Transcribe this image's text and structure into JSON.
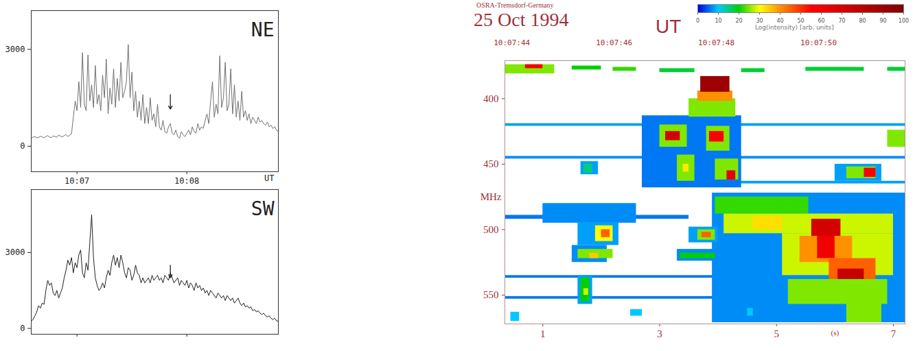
{
  "chart_data": [
    {
      "type": "line",
      "title": "NE",
      "x_label": "UT",
      "xlim": [
        -25,
        110
      ],
      "xticks": [
        {
          "value": 0,
          "label": "10:07"
        },
        {
          "value": 60,
          "label": "10:08"
        }
      ],
      "ylim": [
        -790,
        4200
      ],
      "yticks": [
        0,
        3000
      ],
      "x": [
        -25,
        -24,
        -23,
        -22,
        -21,
        -20,
        -19,
        -18,
        -17,
        -16,
        -15,
        -14,
        -13,
        -12,
        -11,
        -10,
        -9,
        -8,
        -7,
        -6,
        -5,
        -4,
        -3,
        -2,
        -1,
        0,
        1,
        2,
        3,
        4,
        5,
        6,
        7,
        8,
        9,
        10,
        11,
        12,
        13,
        14,
        15,
        16,
        17,
        18,
        19,
        20,
        21,
        22,
        23,
        24,
        25,
        26,
        27,
        28,
        29,
        30,
        31,
        32,
        33,
        34,
        35,
        36,
        37,
        38,
        39,
        40,
        41,
        42,
        43,
        44,
        45,
        46,
        47,
        48,
        49,
        50,
        51,
        52,
        53,
        54,
        55,
        56,
        57,
        58,
        59,
        60,
        61,
        62,
        63,
        64,
        65,
        66,
        67,
        68,
        69,
        70,
        71,
        72,
        73,
        74,
        75,
        76,
        77,
        78,
        79,
        80,
        81,
        82,
        83,
        84,
        85,
        86,
        87,
        88,
        89,
        90,
        91,
        92,
        93,
        94,
        95,
        96,
        97,
        98,
        99,
        100,
        101,
        102,
        103,
        104,
        105,
        106,
        107,
        108,
        109,
        110
      ],
      "values": [
        250,
        280,
        300,
        260,
        270,
        310,
        290,
        260,
        300,
        330,
        280,
        270,
        320,
        300,
        280,
        350,
        310,
        290,
        330,
        360,
        300,
        340,
        380,
        900,
        1400,
        1100,
        2000,
        1200,
        2900,
        1300,
        1100,
        2830,
        1400,
        1900,
        1200,
        2500,
        1300,
        1600,
        1100,
        2200,
        1500,
        2700,
        1000,
        1800,
        1300,
        2400,
        1200,
        2100,
        1400,
        2600,
        1500,
        1700,
        2000,
        3150,
        1500,
        2300,
        1100,
        1700,
        900,
        1400,
        800,
        1600,
        700,
        1200,
        700,
        1500,
        800,
        1000,
        600,
        1300,
        600,
        500,
        800,
        450,
        400,
        600,
        700,
        400,
        350,
        500,
        300,
        250,
        450,
        350,
        300,
        400,
        500,
        350,
        600,
        450,
        400,
        700,
        500,
        600,
        550,
        800,
        1000,
        700,
        1400,
        2000,
        900,
        1300,
        1000,
        2800,
        1200,
        1500,
        2600,
        1100,
        1300,
        2400,
        1000,
        1900,
        900,
        1400,
        800,
        1700,
        900,
        1100,
        800,
        1000,
        700,
        900,
        800,
        700,
        900,
        750,
        800,
        700,
        650,
        750,
        600,
        650,
        550,
        600,
        500,
        450
      ],
      "color": "#707070",
      "arrow": {
        "x": 51,
        "y1": 1600,
        "y2": 1150
      }
    },
    {
      "type": "line",
      "title": "SW",
      "tick_labels": "y",
      "xlim": [
        -25,
        110
      ],
      "xticks": [
        0,
        60
      ],
      "ylim": [
        -230,
        5490
      ],
      "yticks": [
        0,
        3000
      ],
      "x": [
        -25,
        -24,
        -23,
        -22,
        -21,
        -20,
        -19,
        -18,
        -17,
        -16,
        -15,
        -14,
        -13,
        -12,
        -11,
        -10,
        -9,
        -8,
        -7,
        -6,
        -5,
        -4,
        -3,
        -2,
        -1,
        0,
        1,
        2,
        3,
        4,
        5,
        6,
        7,
        8,
        9,
        10,
        11,
        12,
        13,
        14,
        15,
        16,
        17,
        18,
        19,
        20,
        21,
        22,
        23,
        24,
        25,
        26,
        27,
        28,
        29,
        30,
        31,
        32,
        33,
        34,
        35,
        36,
        37,
        38,
        39,
        40,
        41,
        42,
        43,
        44,
        45,
        46,
        47,
        48,
        49,
        50,
        51,
        52,
        53,
        54,
        55,
        56,
        57,
        58,
        59,
        60,
        61,
        62,
        63,
        64,
        65,
        66,
        67,
        68,
        69,
        70,
        71,
        72,
        73,
        74,
        75,
        76,
        77,
        78,
        79,
        80,
        81,
        82,
        83,
        84,
        85,
        86,
        87,
        88,
        89,
        90,
        91,
        92,
        93,
        94,
        95,
        96,
        97,
        98,
        99,
        100,
        101,
        102,
        103,
        104,
        105,
        106,
        107,
        108,
        109,
        110
      ],
      "values": [
        300,
        350,
        500,
        650,
        900,
        800,
        1000,
        950,
        1500,
        1900,
        1700,
        1800,
        1400,
        1300,
        1500,
        1200,
        1400,
        1600,
        2000,
        2300,
        2700,
        2500,
        2800,
        2200,
        2600,
        2400,
        2900,
        3100,
        2200,
        2000,
        2600,
        2300,
        3400,
        4500,
        2800,
        2000,
        1700,
        1500,
        1600,
        1800,
        1600,
        2000,
        2300,
        2100,
        2600,
        2900,
        2500,
        2800,
        2400,
        2900,
        2600,
        2200,
        2000,
        2400,
        2300,
        1900,
        2100,
        2500,
        2200,
        2100,
        1800,
        2000,
        1800,
        1900,
        2000,
        1800,
        2100,
        1900,
        2000,
        2100,
        1900,
        2000,
        1800,
        2100,
        2000,
        1900,
        2200,
        2000,
        1800,
        1900,
        2000,
        1700,
        1900,
        1800,
        1700,
        1900,
        1600,
        1800,
        1700,
        1500,
        1800,
        1600,
        1700,
        1500,
        1600,
        1400,
        1500,
        1300,
        1500,
        1400,
        1300,
        1200,
        1400,
        1300,
        1200,
        1300,
        1100,
        1300,
        1200,
        1100,
        1200,
        1000,
        1100,
        1200,
        1000,
        900,
        1000,
        850,
        900,
        800,
        850,
        700,
        750,
        650,
        700,
        600,
        550,
        600,
        500,
        450,
        500,
        400,
        350,
        400,
        300,
        280
      ],
      "color": "#202020",
      "arrow": {
        "x": 51,
        "y1": 2500,
        "y2": 2000
      }
    },
    {
      "type": "heatmap",
      "title": "25 Oct 1994",
      "subtitle": "OSRA-Tremsdorf-Germany",
      "annotations": [
        "UT"
      ],
      "x_label": "(s)",
      "y_label": "MHz",
      "xlim": [
        0.35,
        7.2
      ],
      "xticks": [
        1,
        3,
        5,
        7
      ],
      "x2ticks": [
        {
          "value": 0.47,
          "label": "10:07:44"
        },
        {
          "value": 2.22,
          "label": "10:07:46"
        },
        {
          "value": 3.97,
          "label": "10:07:48"
        },
        {
          "value": 5.72,
          "label": "10:07:50"
        }
      ],
      "ylim": [
        371,
        572
      ],
      "yticks": [
        400,
        450,
        500,
        550
      ],
      "cells": [
        {
          "t1": 0.35,
          "t2": 7.2,
          "f1": 419,
          "f2": 421,
          "value": 8
        },
        {
          "t1": 0.35,
          "t2": 7.2,
          "f1": 444,
          "f2": 446,
          "value": 7
        },
        {
          "t1": 4.0,
          "t2": 7.2,
          "f1": 463,
          "f2": 465,
          "value": 8
        },
        {
          "t1": 0.35,
          "t2": 4.0,
          "f1": 535,
          "f2": 537,
          "value": 6
        },
        {
          "t1": 0.35,
          "t2": 7.2,
          "f1": 551,
          "f2": 553,
          "value": 6
        },
        {
          "t1": 0.35,
          "t2": 3.5,
          "f1": 489,
          "f2": 492,
          "value": 6
        },
        {
          "t1": 2.7,
          "t2": 4.4,
          "f1": 413,
          "f2": 468,
          "value": 6
        },
        {
          "t1": 3.9,
          "t2": 7.2,
          "f1": 472,
          "f2": 571,
          "value": 7
        },
        {
          "t1": 6.0,
          "t2": 6.8,
          "f1": 450,
          "f2": 463,
          "value": 8
        },
        {
          "t1": 1.0,
          "t2": 2.6,
          "f1": 480,
          "f2": 495,
          "value": 7
        },
        {
          "t1": 1.6,
          "t2": 2.3,
          "f1": 495,
          "f2": 512,
          "value": 8
        },
        {
          "t1": 1.5,
          "t2": 2.1,
          "f1": 512,
          "f2": 525,
          "value": 7
        },
        {
          "t1": 1.6,
          "t2": 1.85,
          "f1": 535,
          "f2": 557,
          "value": 8
        },
        {
          "t1": 1.65,
          "t2": 1.95,
          "f1": 448,
          "f2": 458,
          "value": 8
        },
        {
          "t1": 3.5,
          "t2": 4.0,
          "f1": 498,
          "f2": 510,
          "value": 8
        },
        {
          "t1": 3.3,
          "t2": 4.0,
          "f1": 515,
          "f2": 524,
          "value": 7
        },
        {
          "t1": 2.5,
          "t2": 2.7,
          "f1": 561,
          "f2": 566,
          "value": 10
        },
        {
          "t1": 4.5,
          "t2": 4.6,
          "f1": 560,
          "f2": 566,
          "value": 10
        },
        {
          "t1": 0.45,
          "t2": 0.6,
          "f1": 563,
          "f2": 570,
          "value": 10
        },
        {
          "t1": 0.35,
          "t2": 1.2,
          "f1": 374,
          "f2": 381,
          "value": 25
        },
        {
          "t1": 0.7,
          "t2": 1.0,
          "f1": 374,
          "f2": 377,
          "value": 60
        },
        {
          "t1": 1.5,
          "t2": 2.0,
          "f1": 375,
          "f2": 378,
          "value": 20
        },
        {
          "t1": 2.2,
          "t2": 2.6,
          "f1": 376,
          "f2": 379,
          "value": 22
        },
        {
          "t1": 3.0,
          "t2": 3.6,
          "f1": 377,
          "f2": 380,
          "value": 18
        },
        {
          "t1": 4.4,
          "t2": 4.8,
          "f1": 377,
          "f2": 380,
          "value": 18
        },
        {
          "t1": 5.5,
          "t2": 6.5,
          "f1": 376,
          "f2": 379,
          "value": 18
        },
        {
          "t1": 6.9,
          "t2": 7.2,
          "f1": 376,
          "f2": 379,
          "value": 18
        },
        {
          "t1": 3.5,
          "t2": 4.3,
          "f1": 400,
          "f2": 414,
          "value": 25
        },
        {
          "t1": 3.65,
          "t2": 4.25,
          "f1": 394,
          "f2": 402,
          "value": 40
        },
        {
          "t1": 3.7,
          "t2": 4.2,
          "f1": 383,
          "f2": 395,
          "value": 90
        },
        {
          "t1": 3.0,
          "t2": 3.47,
          "f1": 420,
          "f2": 437,
          "value": 25
        },
        {
          "t1": 3.1,
          "t2": 3.35,
          "f1": 425,
          "f2": 432,
          "value": 70
        },
        {
          "t1": 3.8,
          "t2": 4.2,
          "f1": 421,
          "f2": 440,
          "value": 25
        },
        {
          "t1": 3.85,
          "t2": 4.1,
          "f1": 425,
          "f2": 433,
          "value": 55
        },
        {
          "t1": 3.3,
          "t2": 3.6,
          "f1": 443,
          "f2": 463,
          "value": 25
        },
        {
          "t1": 3.4,
          "t2": 3.5,
          "f1": 450,
          "f2": 456,
          "value": 32
        },
        {
          "t1": 3.95,
          "t2": 4.35,
          "f1": 446,
          "f2": 462,
          "value": 25
        },
        {
          "t1": 4.15,
          "t2": 4.3,
          "f1": 455,
          "f2": 462,
          "value": 65
        },
        {
          "t1": 6.2,
          "t2": 6.7,
          "f1": 452,
          "f2": 461,
          "value": 25
        },
        {
          "t1": 6.5,
          "t2": 6.7,
          "f1": 453,
          "f2": 460,
          "value": 55
        },
        {
          "t1": 6.9,
          "t2": 7.2,
          "f1": 424,
          "f2": 437,
          "value": 25
        },
        {
          "t1": 1.7,
          "t2": 1.85,
          "f1": 450,
          "f2": 457,
          "value": 15
        },
        {
          "t1": 3.95,
          "t2": 5.55,
          "f1": 475,
          "f2": 488,
          "value": 22
        },
        {
          "t1": 4.1,
          "t2": 7.0,
          "f1": 488,
          "f2": 503,
          "value": 28
        },
        {
          "t1": 5.1,
          "t2": 7.0,
          "f1": 503,
          "f2": 535,
          "value": 28
        },
        {
          "t1": 4.6,
          "t2": 5.1,
          "f1": 490,
          "f2": 500,
          "value": 33
        },
        {
          "t1": 5.6,
          "t2": 6.1,
          "f1": 492,
          "f2": 508,
          "value": 70
        },
        {
          "t1": 5.4,
          "t2": 6.3,
          "f1": 505,
          "f2": 525,
          "value": 40
        },
        {
          "t1": 5.7,
          "t2": 6.0,
          "f1": 505,
          "f2": 522,
          "value": 60
        },
        {
          "t1": 5.9,
          "t2": 6.7,
          "f1": 522,
          "f2": 538,
          "value": 45
        },
        {
          "t1": 6.05,
          "t2": 6.5,
          "f1": 530,
          "f2": 538,
          "value": 75
        },
        {
          "t1": 5.2,
          "t2": 6.9,
          "f1": 538,
          "f2": 557,
          "value": 25
        },
        {
          "t1": 6.2,
          "t2": 6.8,
          "f1": 550,
          "f2": 571,
          "value": 25
        },
        {
          "t1": 1.9,
          "t2": 2.2,
          "f1": 497,
          "f2": 509,
          "value": 30
        },
        {
          "t1": 2.0,
          "t2": 2.15,
          "f1": 500,
          "f2": 506,
          "value": 45
        },
        {
          "t1": 1.6,
          "t2": 2.2,
          "f1": 515,
          "f2": 522,
          "value": 25
        },
        {
          "t1": 1.8,
          "t2": 1.95,
          "f1": 518,
          "f2": 522,
          "value": 35
        },
        {
          "t1": 3.65,
          "t2": 3.95,
          "f1": 500,
          "f2": 508,
          "value": 25
        },
        {
          "t1": 3.72,
          "t2": 3.88,
          "f1": 502,
          "f2": 506,
          "value": 45
        },
        {
          "t1": 3.35,
          "t2": 3.95,
          "f1": 518,
          "f2": 522,
          "value": 20
        },
        {
          "t1": 1.65,
          "t2": 1.8,
          "f1": 537,
          "f2": 555,
          "value": 20
        },
        {
          "t1": 1.7,
          "t2": 1.78,
          "f1": 545,
          "f2": 550,
          "value": 28
        }
      ],
      "colorbar": {
        "label": "Log(intensity) [arb. units]",
        "range": [
          0,
          100
        ],
        "ticks": [
          0,
          10,
          20,
          30,
          40,
          50,
          60,
          70,
          80,
          90,
          100
        ],
        "stops": [
          0,
          10,
          20,
          30,
          40,
          55,
          100
        ],
        "colors": [
          "#0000e0",
          "#00c8ff",
          "#00d000",
          "#ffff00",
          "#ff9000",
          "#ff0000",
          "#800000"
        ]
      }
    }
  ]
}
